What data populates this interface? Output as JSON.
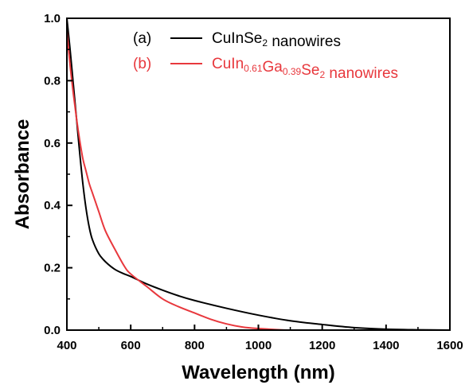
{
  "chart_data": {
    "type": "line",
    "xlabel": "Wavelength (nm)",
    "ylabel": "Absorbance",
    "xlim": [
      400,
      1600
    ],
    "ylim": [
      0.0,
      1.0
    ],
    "xticks": [
      400,
      600,
      800,
      1000,
      1200,
      1400,
      1600
    ],
    "yticks": [
      0.0,
      0.2,
      0.4,
      0.6,
      0.8,
      1.0
    ],
    "xtick_labels": [
      "400",
      "600",
      "800",
      "1000",
      "1200",
      "1400",
      "1600"
    ],
    "ytick_labels": [
      "0.0",
      "0.2",
      "0.4",
      "0.6",
      "0.8",
      "1.0"
    ],
    "legend_position": "top-right",
    "series": [
      {
        "label_prefix": "(a)",
        "name_parts": [
          {
            "text": "CuInSe",
            "sub": false
          },
          {
            "text": "2",
            "sub": true
          },
          {
            "text": " nanowires",
            "sub": false
          }
        ],
        "color": "#000000",
        "x": [
          400,
          410,
          420,
          430,
          440,
          450,
          460,
          470,
          480,
          500,
          520,
          550,
          580,
          600,
          650,
          700,
          750,
          800,
          900,
          1000,
          1100,
          1200,
          1300,
          1400,
          1500,
          1600
        ],
        "y": [
          1.0,
          0.9,
          0.79,
          0.68,
          0.57,
          0.47,
          0.39,
          0.33,
          0.29,
          0.245,
          0.22,
          0.195,
          0.18,
          0.172,
          0.148,
          0.128,
          0.11,
          0.095,
          0.07,
          0.048,
          0.03,
          0.018,
          0.008,
          0.003,
          0.001,
          0.0
        ]
      },
      {
        "label_prefix": "(b)",
        "name_parts": [
          {
            "text": "CuIn",
            "sub": false
          },
          {
            "text": "0.61",
            "sub": true
          },
          {
            "text": "Ga",
            "sub": false
          },
          {
            "text": "0.39",
            "sub": true
          },
          {
            "text": "Se",
            "sub": false
          },
          {
            "text": "2",
            "sub": true
          },
          {
            "text": " nanowires",
            "sub": false
          }
        ],
        "color": "#e8383d",
        "x": [
          400,
          410,
          420,
          430,
          440,
          450,
          460,
          470,
          480,
          500,
          520,
          550,
          580,
          600,
          650,
          700,
          750,
          800,
          850,
          900,
          950,
          1000,
          1050,
          1100,
          1200,
          1300,
          1400,
          1500,
          1600
        ],
        "y": [
          0.96,
          0.85,
          0.76,
          0.68,
          0.61,
          0.55,
          0.51,
          0.47,
          0.44,
          0.38,
          0.32,
          0.26,
          0.205,
          0.18,
          0.14,
          0.1,
          0.075,
          0.055,
          0.035,
          0.02,
          0.01,
          0.005,
          0.002,
          0.0,
          0.0,
          0.0,
          0.0,
          0.0,
          0.0
        ]
      }
    ]
  }
}
